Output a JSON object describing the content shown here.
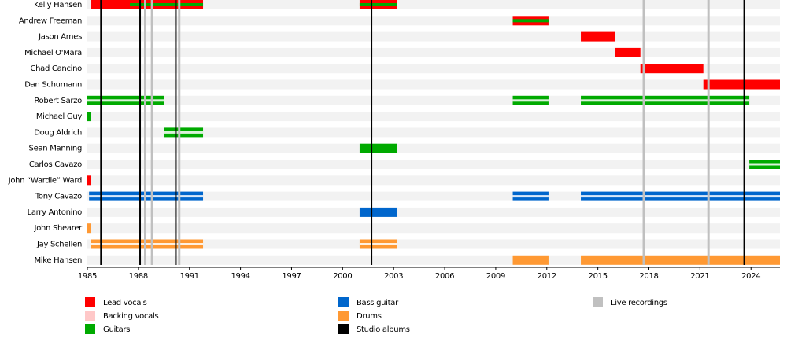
{
  "chart_data": {
    "type": "timeline",
    "xlim": [
      1985,
      2025.7
    ],
    "xticks": [
      1985,
      1988,
      1991,
      1994,
      1997,
      2000,
      2003,
      2006,
      2009,
      2012,
      2015,
      2018,
      2021,
      2024
    ],
    "roles": [
      {
        "name": "Lead vocals",
        "color": "#ff0000"
      },
      {
        "name": "Backing vocals",
        "color": "#ffc8c8"
      },
      {
        "name": "Guitars",
        "color": "#00aa00"
      },
      {
        "name": "Bass guitar",
        "color": "#0066cc"
      },
      {
        "name": "Drums",
        "color": "#ff9933"
      },
      {
        "name": "Studio albums",
        "color": "#000000"
      },
      {
        "name": "Live recordings",
        "color": "#c0c0c0"
      }
    ],
    "members": [
      {
        "name": "Kelly Hansen",
        "bars": [
          {
            "role": "Lead vocals",
            "start": 1985.2,
            "end": 1991.8
          },
          {
            "role": "Guitars",
            "stripe": true,
            "start": 1987.5,
            "end": 1991.8
          },
          {
            "role": "Lead vocals",
            "start": 2001.0,
            "end": 2003.2
          },
          {
            "role": "Guitars",
            "stripe": true,
            "start": 2001.0,
            "end": 2003.2
          }
        ]
      },
      {
        "name": "Andrew Freeman",
        "bars": [
          {
            "role": "Lead vocals",
            "start": 2010.0,
            "end": 2012.1
          },
          {
            "role": "Guitars",
            "stripe": true,
            "start": 2010.0,
            "end": 2012.1
          }
        ]
      },
      {
        "name": "Jason Ames",
        "bars": [
          {
            "role": "Lead vocals",
            "start": 2014.0,
            "end": 2016.0
          }
        ]
      },
      {
        "name": "Michael O'Mara",
        "bars": [
          {
            "role": "Lead vocals",
            "start": 2016.0,
            "end": 2017.5
          }
        ]
      },
      {
        "name": "Chad Cancino",
        "bars": [
          {
            "role": "Lead vocals",
            "start": 2017.5,
            "end": 2021.2
          }
        ]
      },
      {
        "name": "Dan Schumann",
        "bars": [
          {
            "role": "Lead vocals",
            "start": 2021.2,
            "end": 2025.7
          }
        ]
      },
      {
        "name": "Robert Sarzo",
        "bars": [
          {
            "role": "Guitars",
            "start": 1985.0,
            "end": 1989.5
          },
          {
            "role": "Guitars",
            "start": 2010.0,
            "end": 2012.1
          },
          {
            "role": "Guitars",
            "start": 2014.0,
            "end": 2023.9
          }
        ]
      },
      {
        "name": "Michael Guy",
        "bars": [
          {
            "role": "Guitars",
            "start": 1985.0,
            "end": 1985.2
          }
        ]
      },
      {
        "name": "Doug Aldrich",
        "bars": [
          {
            "role": "Guitars",
            "start": 1989.5,
            "end": 1991.8
          }
        ]
      },
      {
        "name": "Sean Manning",
        "bars": [
          {
            "role": "Guitars",
            "start": 2001.0,
            "end": 2003.2
          }
        ]
      },
      {
        "name": "Carlos Cavazo",
        "bars": [
          {
            "role": "Guitars",
            "start": 2023.9,
            "end": 2025.7
          }
        ]
      },
      {
        "name": "John “Wardie” Ward",
        "bars": [
          {
            "role": "Lead vocals",
            "start": 1985.0,
            "end": 1985.2
          }
        ]
      },
      {
        "name": "Tony Cavazo",
        "bars": [
          {
            "role": "Bass guitar",
            "start": 1985.1,
            "end": 1991.8
          },
          {
            "role": "Bass guitar",
            "start": 2010.0,
            "end": 2012.1
          },
          {
            "role": "Bass guitar",
            "start": 2014.0,
            "end": 2025.7
          }
        ]
      },
      {
        "name": "Larry Antonino",
        "bars": [
          {
            "role": "Bass guitar",
            "start": 2001.0,
            "end": 2003.2
          }
        ]
      },
      {
        "name": "John Shearer",
        "bars": [
          {
            "role": "Drums",
            "start": 1985.0,
            "end": 1985.2
          }
        ]
      },
      {
        "name": "Jay Schellen",
        "bars": [
          {
            "role": "Drums",
            "start": 1985.2,
            "end": 1991.8
          },
          {
            "role": "Drums",
            "start": 2001.0,
            "end": 2003.2
          }
        ]
      },
      {
        "name": "Mike Hansen",
        "bars": [
          {
            "role": "Drums",
            "start": 2010.0,
            "end": 2012.1
          },
          {
            "role": "Drums",
            "start": 2014.0,
            "end": 2025.7
          }
        ]
      }
    ],
    "doubled": [
      "Robert Sarzo",
      "Doug Aldrich",
      "Carlos Cavazo",
      "Tony Cavazo",
      "Jay Schellen"
    ],
    "events": [
      {
        "role": "Live recordings",
        "x": 1988.4
      },
      {
        "role": "Live recordings",
        "x": 1988.8
      },
      {
        "role": "Live recordings",
        "x": 1990.4
      },
      {
        "role": "Live recordings",
        "x": 2017.7
      },
      {
        "role": "Live recordings",
        "x": 2021.5
      },
      {
        "role": "Studio albums",
        "x": 1985.8
      },
      {
        "role": "Studio albums",
        "x": 1988.1
      },
      {
        "role": "Studio albums",
        "x": 1990.2
      },
      {
        "role": "Studio albums",
        "x": 2001.7
      },
      {
        "role": "Studio albums",
        "x": 2023.6
      }
    ]
  }
}
